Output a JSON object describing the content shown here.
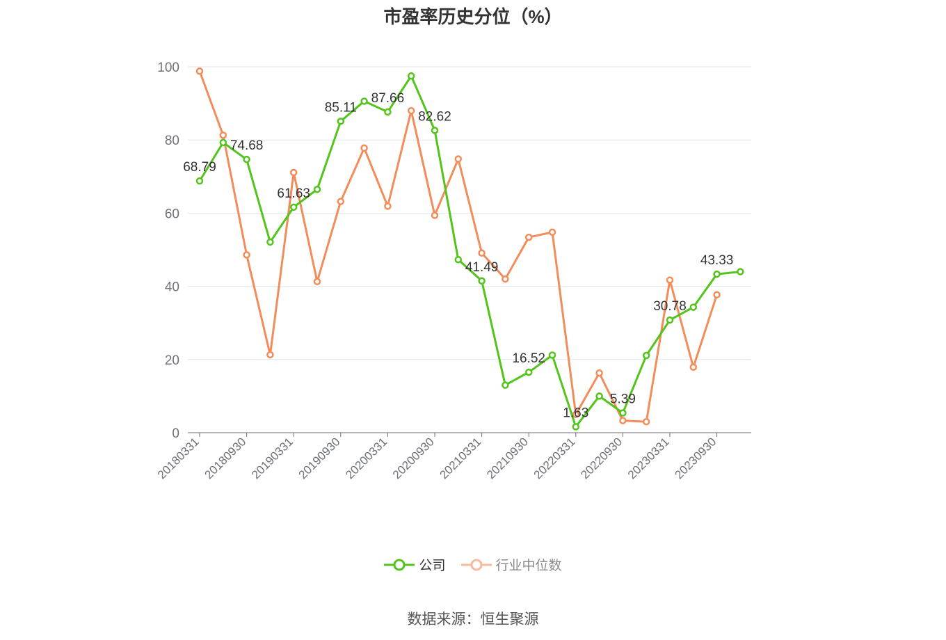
{
  "chart_data": {
    "type": "line",
    "title": "市盈率历史分位（%）",
    "xlabel": "",
    "ylabel": "",
    "ylim": [
      0,
      100
    ],
    "yticks": [
      0,
      20,
      40,
      60,
      80,
      100
    ],
    "grid": true,
    "legend_position": "bottom",
    "x": [
      "20180331",
      "20180630",
      "20180930",
      "20181231",
      "20190331",
      "20190630",
      "20190930",
      "20191231",
      "20200331",
      "20200630",
      "20200930",
      "20201231",
      "20210331",
      "20210630",
      "20210930",
      "20211231",
      "20220331",
      "20220630",
      "20220930",
      "20221231",
      "20230331",
      "20230630",
      "20230930",
      "20231231"
    ],
    "xticks_shown": [
      "20180331",
      "20180930",
      "20190331",
      "20190930",
      "20200331",
      "20200930",
      "20210331",
      "20210930",
      "20220331",
      "20220930",
      "20230331",
      "20230930"
    ],
    "series": [
      {
        "name": "公司",
        "color": "#52c41a",
        "values": [
          68.79,
          79.3,
          74.68,
          52.1,
          61.63,
          66.5,
          85.11,
          90.6,
          87.66,
          97.5,
          82.62,
          47.3,
          41.49,
          13.0,
          16.52,
          21.2,
          1.63,
          10.0,
          5.39,
          21.1,
          30.78,
          34.3,
          43.33,
          44.0
        ],
        "labels": {
          "0": "68.79",
          "2": "74.68",
          "4": "61.63",
          "6": "85.11",
          "8": "87.66",
          "10": "82.62",
          "12": "41.49",
          "14": "16.52",
          "16": "1.63",
          "18": "5.39",
          "20": "30.78",
          "22": "43.33"
        }
      },
      {
        "name": "行业中位数",
        "color": "#f28c5a",
        "values": [
          98.8,
          81.3,
          48.6,
          21.3,
          71.1,
          41.3,
          63.2,
          77.8,
          61.9,
          88.0,
          59.4,
          74.8,
          49.1,
          42.0,
          53.4,
          54.8,
          5.0,
          16.3,
          3.3,
          3.0,
          41.7,
          17.9,
          37.7,
          null
        ]
      }
    ]
  },
  "legend": {
    "company": "公司",
    "industry": "行业中位数"
  },
  "source": "数据来源：恒生聚源"
}
